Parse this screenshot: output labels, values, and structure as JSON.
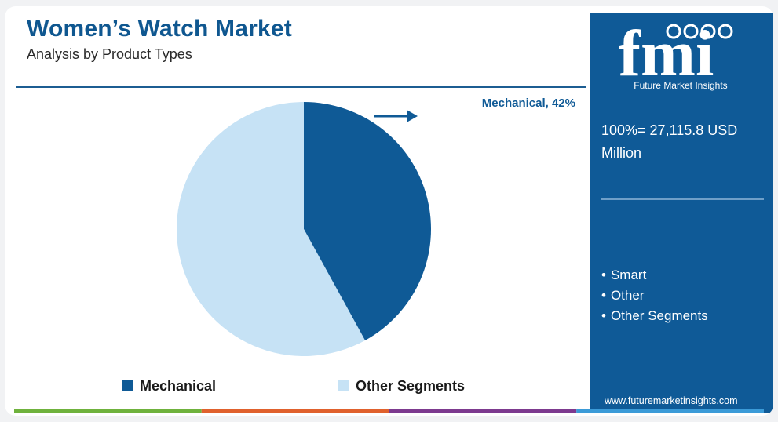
{
  "header": {
    "title": "Women’s Watch Market",
    "subtitle": "Analysis by Product Types"
  },
  "chart_data": {
    "type": "pie",
    "title": "Women’s Watch Market",
    "subtitle": "Analysis by Product Types",
    "slices": [
      {
        "label": "Mechanical",
        "value": 42,
        "color": "#0f5a96"
      },
      {
        "label": "Other Segments",
        "value": 58,
        "color": "#c6e2f5"
      }
    ],
    "callout": {
      "text": "Mechanical, 42%",
      "color": "#0f5a96"
    },
    "legend": {
      "placement": "bottom",
      "items": [
        "Mechanical",
        "Other Segments"
      ]
    },
    "legend_text_color": "#1a1a1a"
  },
  "sidebar": {
    "brand": "fmi",
    "brand_sub": "Future Market Insights",
    "total": "100%= 27,115.8 USD Million",
    "segments": [
      "Smart",
      "Other",
      "Other Segments"
    ],
    "website": "www.futuremarketinsights.com",
    "background": "#0f5a97"
  },
  "footer_colors": [
    "#6fb23d",
    "#e0612d",
    "#7d3a8f",
    "#3b9bd8"
  ]
}
